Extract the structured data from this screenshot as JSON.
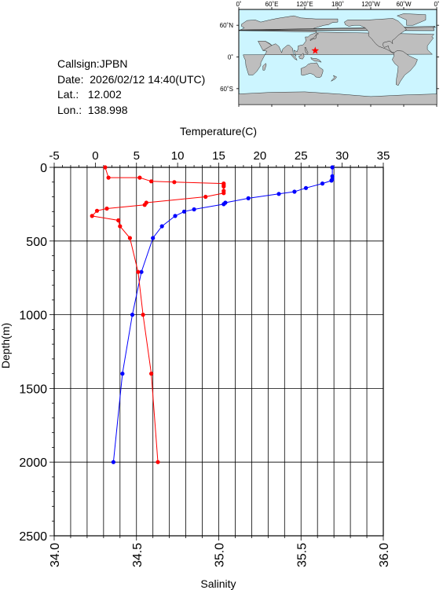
{
  "info": {
    "callsign": "Callsign:JPBN",
    "date": "Date:  2026/02/12 14:40(UTC)",
    "lat": "Lat.:   12.002",
    "lon": "Lon.:  138.998"
  },
  "map": {
    "lon_labels": [
      "0˚",
      "60˚E",
      "120˚E",
      "180˚",
      "120˚W",
      "60˚W",
      "0˚"
    ],
    "lat_labels": [
      "60˚N",
      "0˚",
      "60˚S"
    ],
    "ocean_color": "#ccf5ff",
    "land_color": "#bebebe",
    "marker": {
      "lat": 12.002,
      "lon": 138.998,
      "color": "#ff0000",
      "symbol": "star"
    }
  },
  "chart_data": {
    "type": "line",
    "top_axis_label": "Temperature(C)",
    "left_axis_label": "Depth(m)",
    "bottom_axis_label": "Salinity",
    "temperature_ticks": [
      "-5",
      "0",
      "5",
      "10",
      "15",
      "20",
      "25",
      "30",
      "35"
    ],
    "depth_ticks": [
      "0",
      "500",
      "1000",
      "1500",
      "2000",
      "2500"
    ],
    "salinity_ticks": [
      "34.0",
      "34.5",
      "35.0",
      "35.5",
      "36.0"
    ],
    "temperature_range": [
      -5,
      35
    ],
    "salinity_range": [
      34.0,
      36.0
    ],
    "depth_range": [
      0,
      2500
    ],
    "grid": true,
    "series": [
      {
        "quantity": "temperature",
        "color": "#0000ff",
        "points": [
          {
            "depth": 0,
            "value": 28.8
          },
          {
            "depth": 60,
            "value": 28.8
          },
          {
            "depth": 80,
            "value": 28.8
          },
          {
            "depth": 90,
            "value": 28.7
          },
          {
            "depth": 110,
            "value": 27.6
          },
          {
            "depth": 140,
            "value": 25.6
          },
          {
            "depth": 165,
            "value": 24.2
          },
          {
            "depth": 180,
            "value": 22.3
          },
          {
            "depth": 210,
            "value": 18.6
          },
          {
            "depth": 240,
            "value": 15.8
          },
          {
            "depth": 250,
            "value": 15.6
          },
          {
            "depth": 285,
            "value": 12.0
          },
          {
            "depth": 300,
            "value": 10.8
          },
          {
            "depth": 330,
            "value": 9.7
          },
          {
            "depth": 400,
            "value": 8.1
          },
          {
            "depth": 480,
            "value": 7.0
          },
          {
            "depth": 710,
            "value": 5.6
          },
          {
            "depth": 1000,
            "value": 4.5
          },
          {
            "depth": 1400,
            "value": 3.3
          },
          {
            "depth": 2000,
            "value": 2.2
          }
        ]
      },
      {
        "quantity": "salinity",
        "color": "#ff0000",
        "points": [
          {
            "depth": 0,
            "value": 34.31
          },
          {
            "depth": 70,
            "value": 34.33
          },
          {
            "depth": 70,
            "value": 34.52
          },
          {
            "depth": 95,
            "value": 34.59
          },
          {
            "depth": 100,
            "value": 34.73
          },
          {
            "depth": 110,
            "value": 35.03
          },
          {
            "depth": 120,
            "value": 35.03
          },
          {
            "depth": 130,
            "value": 35.03
          },
          {
            "depth": 160,
            "value": 35.03
          },
          {
            "depth": 175,
            "value": 35.03
          },
          {
            "depth": 200,
            "value": 34.92
          },
          {
            "depth": 240,
            "value": 34.56
          },
          {
            "depth": 255,
            "value": 34.55
          },
          {
            "depth": 280,
            "value": 34.32
          },
          {
            "depth": 295,
            "value": 34.26
          },
          {
            "depth": 330,
            "value": 34.23
          },
          {
            "depth": 360,
            "value": 34.39
          },
          {
            "depth": 400,
            "value": 34.4
          },
          {
            "depth": 480,
            "value": 34.46
          },
          {
            "depth": 710,
            "value": 34.51
          },
          {
            "depth": 1000,
            "value": 34.54
          },
          {
            "depth": 1400,
            "value": 34.59
          },
          {
            "depth": 2000,
            "value": 34.63
          }
        ]
      }
    ]
  }
}
